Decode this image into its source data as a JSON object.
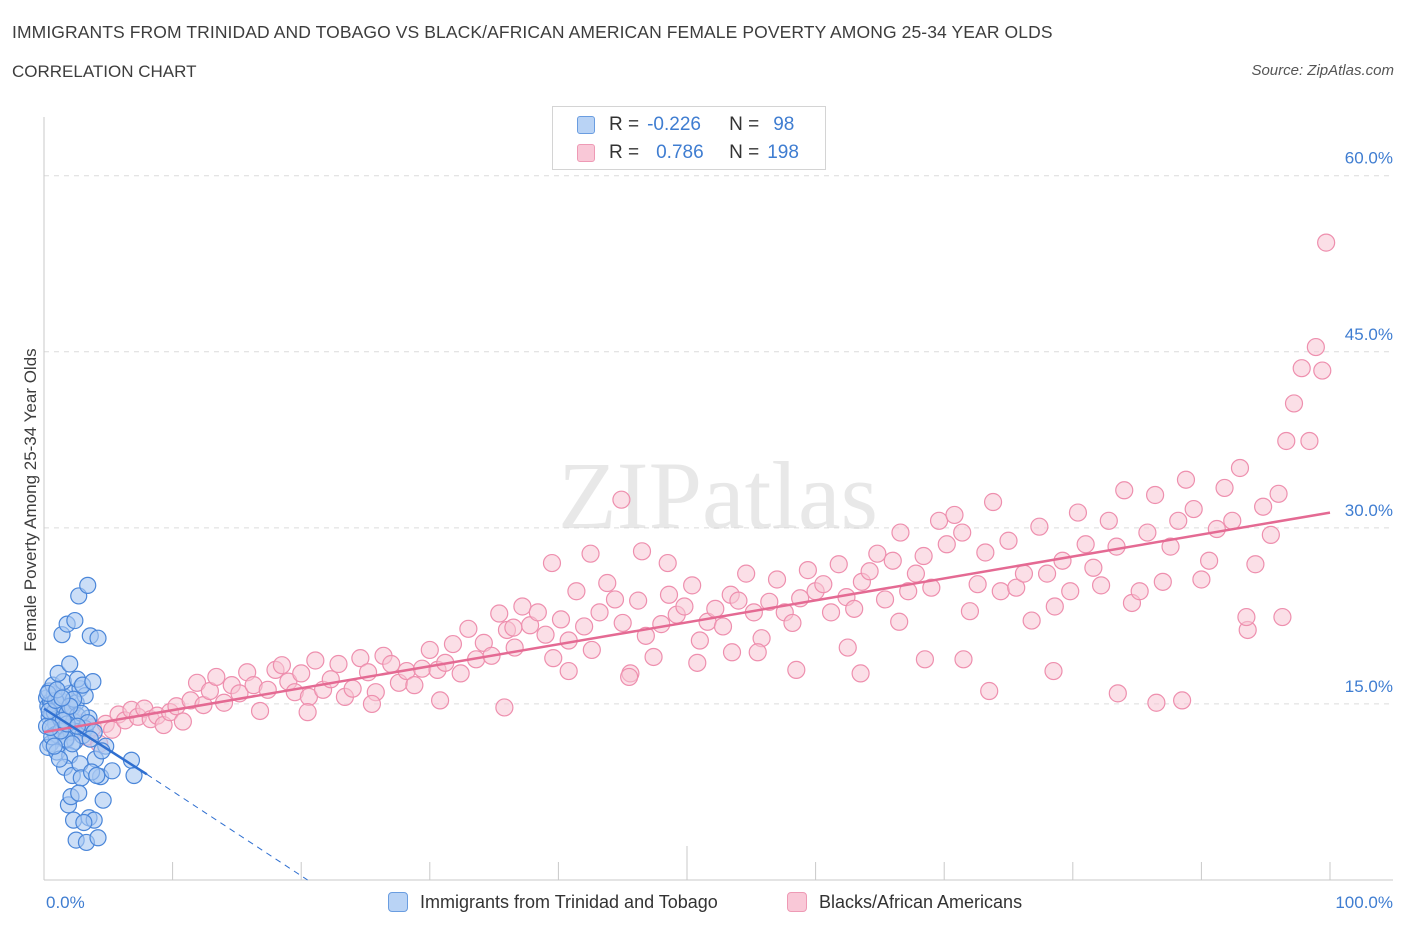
{
  "title": "IMMIGRANTS FROM TRINIDAD AND TOBAGO VS BLACK/AFRICAN AMERICAN FEMALE POVERTY AMONG 25-34 YEAR OLDS",
  "subtitle": "CORRELATION CHART",
  "source": "Source: ZipAtlas.com",
  "watermark": "ZIPatlas",
  "legend": {
    "rows": [
      {
        "r_label": "R =",
        "r_value": "-0.226",
        "n_label": "N =",
        "n_value": "98",
        "color": "#a9c8f2"
      },
      {
        "r_label": "R =",
        "r_value": "0.786",
        "n_label": "N =",
        "n_value": "198",
        "color": "#f7b8cc"
      }
    ]
  },
  "bottom_legend": {
    "series_a": "Immigrants from Trinidad and Tobago",
    "series_b": "Blacks/African Americans"
  },
  "colors": {
    "blue_fill": "#a9c8f2",
    "blue_stroke": "#4a86d9",
    "blue_line": "#2f6fd0",
    "pink_fill": "#f7c4d4",
    "pink_stroke": "#ee8fae",
    "pink_line": "#e46a93",
    "tick_text": "#3f7dd1",
    "grid": "#dcdcdc"
  },
  "chart_data": {
    "type": "scatter",
    "title": "IMMIGRANTS FROM TRINIDAD AND TOBAGO VS BLACK/AFRICAN AMERICAN FEMALE POVERTY AMONG 25-34 YEAR OLDS",
    "xlabel": "",
    "ylabel": "Female Poverty Among 25-34 Year Olds",
    "xlim": [
      0,
      100
    ],
    "ylim": [
      0,
      65
    ],
    "x_tick_labels": [
      "0.0%",
      "100.0%"
    ],
    "y_ticks": [
      15,
      30,
      45,
      60
    ],
    "y_tick_labels": [
      "15.0%",
      "30.0%",
      "45.0%",
      "60.0%"
    ],
    "grid": "horizontal dashed",
    "legend_placement": "top-center",
    "series": [
      {
        "name": "Immigrants from Trinidad and Tobago",
        "color": "#a9c8f2",
        "R": -0.226,
        "N": 98,
        "trend": {
          "x": [
            0,
            8
          ],
          "y": [
            14.6,
            9.0
          ],
          "dashed_extension": {
            "x": [
              8,
              20.5
            ],
            "y": [
              9.0,
              0.0
            ]
          }
        },
        "points": [
          [
            0.2,
            15.5
          ],
          [
            0.3,
            14.8
          ],
          [
            0.4,
            13.9
          ],
          [
            0.5,
            15.2
          ],
          [
            0.6,
            14.1
          ],
          [
            0.7,
            12.8
          ],
          [
            0.8,
            15.8
          ],
          [
            0.9,
            13.3
          ],
          [
            1.0,
            14.6
          ],
          [
            1.1,
            12.1
          ],
          [
            0.2,
            13.1
          ],
          [
            0.4,
            16.1
          ],
          [
            0.5,
            11.6
          ],
          [
            0.6,
            15.0
          ],
          [
            0.8,
            14.3
          ],
          [
            0.9,
            12.4
          ],
          [
            1.2,
            15.4
          ],
          [
            1.3,
            13.7
          ],
          [
            1.4,
            14.9
          ],
          [
            1.5,
            12.9
          ],
          [
            1.6,
            15.6
          ],
          [
            1.7,
            11.9
          ],
          [
            1.8,
            14.2
          ],
          [
            1.9,
            13.0
          ],
          [
            2.0,
            15.9
          ],
          [
            2.1,
            12.6
          ],
          [
            2.2,
            14.7
          ],
          [
            2.3,
            13.5
          ],
          [
            2.4,
            11.8
          ],
          [
            2.5,
            15.1
          ],
          [
            0.3,
            11.3
          ],
          [
            0.7,
            16.6
          ],
          [
            1.0,
            10.9
          ],
          [
            1.5,
            16.9
          ],
          [
            2.0,
            10.6
          ],
          [
            2.6,
            14.0
          ],
          [
            2.8,
            16.3
          ],
          [
            3.0,
            12.3
          ],
          [
            3.2,
            15.7
          ],
          [
            3.5,
            13.8
          ],
          [
            1.1,
            17.6
          ],
          [
            1.4,
            20.9
          ],
          [
            1.6,
            9.6
          ],
          [
            1.8,
            21.8
          ],
          [
            2.0,
            18.4
          ],
          [
            2.2,
            8.9
          ],
          [
            2.4,
            22.1
          ],
          [
            2.6,
            17.1
          ],
          [
            2.8,
            9.9
          ],
          [
            3.0,
            16.6
          ],
          [
            2.7,
            24.2
          ],
          [
            3.2,
            12.9
          ],
          [
            3.4,
            25.1
          ],
          [
            3.6,
            20.8
          ],
          [
            3.8,
            16.9
          ],
          [
            4.0,
            10.3
          ],
          [
            4.2,
            20.6
          ],
          [
            4.4,
            8.8
          ],
          [
            4.6,
            6.8
          ],
          [
            4.8,
            11.4
          ],
          [
            1.9,
            6.4
          ],
          [
            2.1,
            7.1
          ],
          [
            2.3,
            5.1
          ],
          [
            2.5,
            3.4
          ],
          [
            2.9,
            8.7
          ],
          [
            3.3,
            3.2
          ],
          [
            3.5,
            5.3
          ],
          [
            3.7,
            9.2
          ],
          [
            3.9,
            5.1
          ],
          [
            4.2,
            3.6
          ],
          [
            3.1,
            4.9
          ],
          [
            2.7,
            7.4
          ],
          [
            4.1,
            8.9
          ],
          [
            5.3,
            9.3
          ],
          [
            6.8,
            10.2
          ],
          [
            7.0,
            8.9
          ],
          [
            0.6,
            12.2
          ],
          [
            1.2,
            10.3
          ],
          [
            1.7,
            12.0
          ],
          [
            2.2,
            11.6
          ],
          [
            0.4,
            14.4
          ],
          [
            0.9,
            15.3
          ],
          [
            1.3,
            12.7
          ],
          [
            1.8,
            13.3
          ],
          [
            2.3,
            15.4
          ],
          [
            2.9,
            14.2
          ],
          [
            3.4,
            13.4
          ],
          [
            3.9,
            12.6
          ],
          [
            0.3,
            15.9
          ],
          [
            1.0,
            16.2
          ],
          [
            1.5,
            13.6
          ],
          [
            2.0,
            14.8
          ],
          [
            2.6,
            13.1
          ],
          [
            0.5,
            13.0
          ],
          [
            0.8,
            11.4
          ],
          [
            1.4,
            15.5
          ],
          [
            4.5,
            11.0
          ],
          [
            3.6,
            12.0
          ]
        ]
      },
      {
        "name": "Blacks/African Americans",
        "color": "#f7b8cc",
        "R": 0.786,
        "N": 198,
        "trend": {
          "x": [
            0,
            100
          ],
          "y": [
            12.6,
            31.3
          ]
        },
        "points": [
          [
            1.5,
            14.2
          ],
          [
            2.2,
            12.6
          ],
          [
            2.8,
            13.4
          ],
          [
            3.3,
            12.2
          ],
          [
            3.8,
            13.0
          ],
          [
            4.3,
            11.6
          ],
          [
            4.8,
            13.3
          ],
          [
            5.3,
            12.8
          ],
          [
            5.8,
            14.1
          ],
          [
            6.3,
            13.6
          ],
          [
            6.8,
            14.5
          ],
          [
            7.3,
            13.9
          ],
          [
            7.8,
            14.6
          ],
          [
            8.3,
            13.7
          ],
          [
            8.8,
            14.0
          ],
          [
            9.3,
            13.2
          ],
          [
            9.8,
            14.3
          ],
          [
            10.3,
            14.8
          ],
          [
            10.8,
            13.5
          ],
          [
            11.4,
            15.3
          ],
          [
            11.9,
            16.8
          ],
          [
            12.4,
            14.9
          ],
          [
            12.9,
            16.1
          ],
          [
            13.4,
            17.3
          ],
          [
            14.0,
            15.1
          ],
          [
            14.6,
            16.6
          ],
          [
            15.2,
            15.9
          ],
          [
            15.8,
            17.7
          ],
          [
            16.3,
            16.6
          ],
          [
            16.8,
            14.4
          ],
          [
            17.4,
            16.2
          ],
          [
            18.0,
            17.9
          ],
          [
            18.5,
            18.3
          ],
          [
            19.0,
            16.9
          ],
          [
            19.5,
            16.0
          ],
          [
            20.0,
            17.6
          ],
          [
            20.6,
            15.6
          ],
          [
            21.1,
            18.7
          ],
          [
            21.7,
            16.2
          ],
          [
            22.3,
            17.1
          ],
          [
            22.9,
            18.4
          ],
          [
            23.4,
            15.6
          ],
          [
            24.0,
            16.3
          ],
          [
            24.6,
            18.9
          ],
          [
            25.2,
            17.7
          ],
          [
            25.8,
            16.0
          ],
          [
            26.4,
            19.1
          ],
          [
            27.0,
            18.4
          ],
          [
            27.6,
            16.8
          ],
          [
            28.2,
            17.8
          ],
          [
            28.8,
            16.6
          ],
          [
            29.4,
            18.0
          ],
          [
            30.0,
            19.6
          ],
          [
            30.6,
            17.9
          ],
          [
            31.2,
            18.5
          ],
          [
            31.8,
            20.1
          ],
          [
            32.4,
            17.6
          ],
          [
            33.0,
            21.4
          ],
          [
            33.6,
            18.8
          ],
          [
            34.2,
            20.2
          ],
          [
            34.8,
            19.1
          ],
          [
            35.4,
            22.7
          ],
          [
            36.0,
            21.3
          ],
          [
            36.6,
            19.8
          ],
          [
            37.2,
            23.3
          ],
          [
            37.8,
            21.7
          ],
          [
            38.4,
            22.8
          ],
          [
            39.0,
            20.9
          ],
          [
            39.6,
            18.9
          ],
          [
            40.2,
            22.2
          ],
          [
            40.8,
            20.4
          ],
          [
            41.4,
            24.6
          ],
          [
            42.0,
            21.6
          ],
          [
            42.6,
            19.6
          ],
          [
            43.2,
            22.8
          ],
          [
            43.8,
            25.3
          ],
          [
            44.4,
            23.9
          ],
          [
            45.0,
            21.9
          ],
          [
            45.6,
            17.6
          ],
          [
            46.2,
            23.8
          ],
          [
            46.8,
            20.8
          ],
          [
            47.4,
            19.0
          ],
          [
            48.0,
            21.8
          ],
          [
            48.6,
            24.3
          ],
          [
            49.2,
            22.6
          ],
          [
            49.8,
            23.3
          ],
          [
            50.4,
            25.1
          ],
          [
            51.0,
            20.4
          ],
          [
            51.6,
            22.0
          ],
          [
            52.2,
            23.1
          ],
          [
            52.8,
            21.6
          ],
          [
            53.4,
            24.3
          ],
          [
            54.0,
            23.8
          ],
          [
            54.6,
            26.1
          ],
          [
            55.2,
            22.8
          ],
          [
            55.8,
            20.6
          ],
          [
            56.4,
            23.7
          ],
          [
            57.0,
            25.6
          ],
          [
            57.6,
            22.8
          ],
          [
            58.2,
            21.9
          ],
          [
            58.8,
            24.0
          ],
          [
            59.4,
            26.4
          ],
          [
            60.0,
            24.6
          ],
          [
            60.6,
            25.2
          ],
          [
            61.2,
            22.8
          ],
          [
            61.8,
            26.9
          ],
          [
            62.4,
            24.1
          ],
          [
            63.0,
            23.1
          ],
          [
            63.6,
            25.4
          ],
          [
            64.2,
            26.3
          ],
          [
            64.8,
            27.8
          ],
          [
            65.4,
            23.9
          ],
          [
            66.0,
            27.2
          ],
          [
            66.6,
            29.6
          ],
          [
            67.2,
            24.6
          ],
          [
            67.8,
            26.1
          ],
          [
            68.4,
            27.6
          ],
          [
            69.0,
            24.9
          ],
          [
            69.6,
            30.6
          ],
          [
            70.2,
            28.6
          ],
          [
            70.8,
            31.1
          ],
          [
            71.4,
            29.6
          ],
          [
            72.0,
            22.9
          ],
          [
            72.6,
            25.2
          ],
          [
            73.2,
            27.9
          ],
          [
            73.8,
            32.2
          ],
          [
            74.4,
            24.6
          ],
          [
            75.0,
            28.9
          ],
          [
            75.6,
            24.9
          ],
          [
            76.2,
            26.1
          ],
          [
            76.8,
            22.1
          ],
          [
            77.4,
            30.1
          ],
          [
            78.0,
            26.1
          ],
          [
            78.6,
            23.3
          ],
          [
            79.2,
            27.2
          ],
          [
            79.8,
            24.6
          ],
          [
            80.4,
            31.3
          ],
          [
            81.0,
            28.6
          ],
          [
            81.6,
            26.6
          ],
          [
            82.2,
            25.1
          ],
          [
            82.8,
            30.6
          ],
          [
            83.4,
            28.4
          ],
          [
            84.0,
            33.2
          ],
          [
            84.6,
            23.6
          ],
          [
            85.2,
            24.6
          ],
          [
            85.8,
            29.6
          ],
          [
            86.4,
            32.8
          ],
          [
            87.0,
            25.4
          ],
          [
            87.6,
            28.4
          ],
          [
            88.2,
            30.6
          ],
          [
            88.8,
            34.1
          ],
          [
            89.4,
            31.6
          ],
          [
            90.0,
            25.6
          ],
          [
            90.6,
            27.2
          ],
          [
            91.2,
            29.9
          ],
          [
            91.8,
            33.4
          ],
          [
            92.4,
            30.6
          ],
          [
            93.0,
            35.1
          ],
          [
            93.6,
            21.3
          ],
          [
            94.2,
            26.9
          ],
          [
            94.8,
            31.8
          ],
          [
            95.4,
            29.4
          ],
          [
            96.0,
            32.9
          ],
          [
            96.6,
            37.4
          ],
          [
            97.2,
            40.6
          ],
          [
            97.8,
            43.6
          ],
          [
            98.4,
            37.4
          ],
          [
            98.9,
            45.4
          ],
          [
            99.4,
            43.4
          ],
          [
            99.7,
            54.3
          ],
          [
            58.5,
            17.9
          ],
          [
            63.5,
            17.6
          ],
          [
            68.5,
            18.8
          ],
          [
            73.5,
            16.1
          ],
          [
            78.5,
            17.8
          ],
          [
            83.5,
            15.9
          ],
          [
            86.5,
            15.1
          ],
          [
            88.5,
            15.3
          ],
          [
            93.5,
            22.4
          ],
          [
            96.3,
            22.4
          ],
          [
            30.8,
            15.3
          ],
          [
            35.8,
            14.7
          ],
          [
            40.8,
            17.8
          ],
          [
            45.5,
            17.3
          ],
          [
            50.8,
            18.5
          ],
          [
            55.5,
            19.4
          ],
          [
            25.5,
            15.0
          ],
          [
            20.5,
            14.3
          ],
          [
            44.9,
            32.4
          ],
          [
            46.5,
            28.0
          ],
          [
            48.5,
            27.0
          ],
          [
            36.5,
            21.5
          ],
          [
            39.5,
            27.0
          ],
          [
            42.5,
            27.8
          ],
          [
            53.5,
            19.4
          ],
          [
            62.5,
            19.8
          ],
          [
            66.5,
            22.0
          ],
          [
            71.5,
            18.8
          ]
        ]
      }
    ]
  }
}
